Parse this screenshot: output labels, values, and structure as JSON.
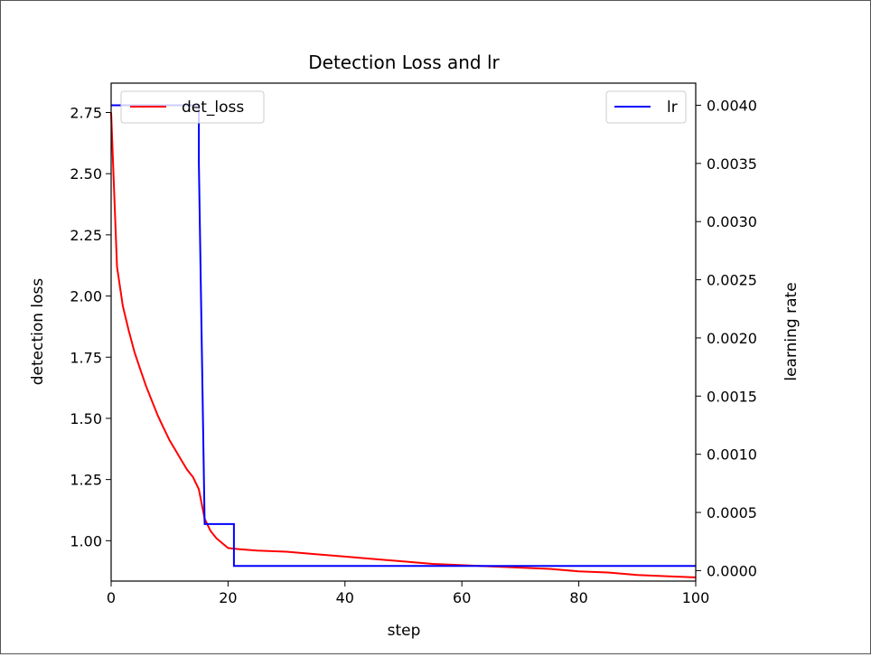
{
  "chart_data": {
    "type": "line",
    "title": "Detection Loss and lr",
    "xlabel": "step",
    "ylabel": "detection loss",
    "y2label": "learning rate",
    "xlim": [
      0,
      100
    ],
    "ylim": [
      0.835,
      2.87
    ],
    "y2lim": [
      -9e-05,
      0.00419
    ],
    "x_ticks": [
      0,
      20,
      40,
      60,
      80,
      100
    ],
    "x_tick_labels": [
      "0",
      "20",
      "40",
      "60",
      "80",
      "100"
    ],
    "y_ticks": [
      1.0,
      1.25,
      1.5,
      1.75,
      2.0,
      2.25,
      2.5,
      2.75
    ],
    "y_tick_labels": [
      "1.00",
      "1.25",
      "1.50",
      "1.75",
      "2.00",
      "2.25",
      "2.50",
      "2.75"
    ],
    "y2_ticks": [
      0.0,
      0.0005,
      0.001,
      0.0015,
      0.002,
      0.0025,
      0.003,
      0.0035,
      0.004
    ],
    "y2_tick_labels": [
      "0.0000",
      "0.0005",
      "0.0010",
      "0.0015",
      "0.0020",
      "0.0025",
      "0.0030",
      "0.0035",
      "0.0040"
    ],
    "grid": false,
    "series": [
      {
        "name": "det_loss",
        "axis": "left",
        "color": "#ff0000",
        "legend_position": "upper-left",
        "x": [
          0,
          1,
          2,
          3,
          4,
          5,
          6,
          7,
          8,
          9,
          10,
          11,
          12,
          13,
          14,
          15,
          16,
          17,
          18,
          19,
          20,
          22,
          25,
          30,
          35,
          40,
          45,
          50,
          55,
          60,
          65,
          70,
          75,
          80,
          85,
          90,
          95,
          100
        ],
        "values": [
          2.75,
          2.12,
          1.96,
          1.86,
          1.77,
          1.7,
          1.63,
          1.57,
          1.51,
          1.46,
          1.41,
          1.37,
          1.33,
          1.29,
          1.26,
          1.21,
          1.09,
          1.04,
          1.01,
          0.99,
          0.97,
          0.965,
          0.96,
          0.955,
          0.945,
          0.935,
          0.925,
          0.915,
          0.905,
          0.9,
          0.895,
          0.89,
          0.885,
          0.875,
          0.87,
          0.86,
          0.855,
          0.85
        ]
      },
      {
        "name": "lr",
        "axis": "right",
        "color": "#0000ff",
        "legend_position": "upper-right",
        "x": [
          0,
          15,
          15,
          16,
          16,
          21,
          21,
          22,
          22,
          100
        ],
        "values": [
          0.004,
          0.004,
          0.0035,
          0.0004,
          0.0004,
          0.0004,
          4e-05,
          4e-05,
          4e-05,
          4e-05
        ]
      }
    ]
  }
}
